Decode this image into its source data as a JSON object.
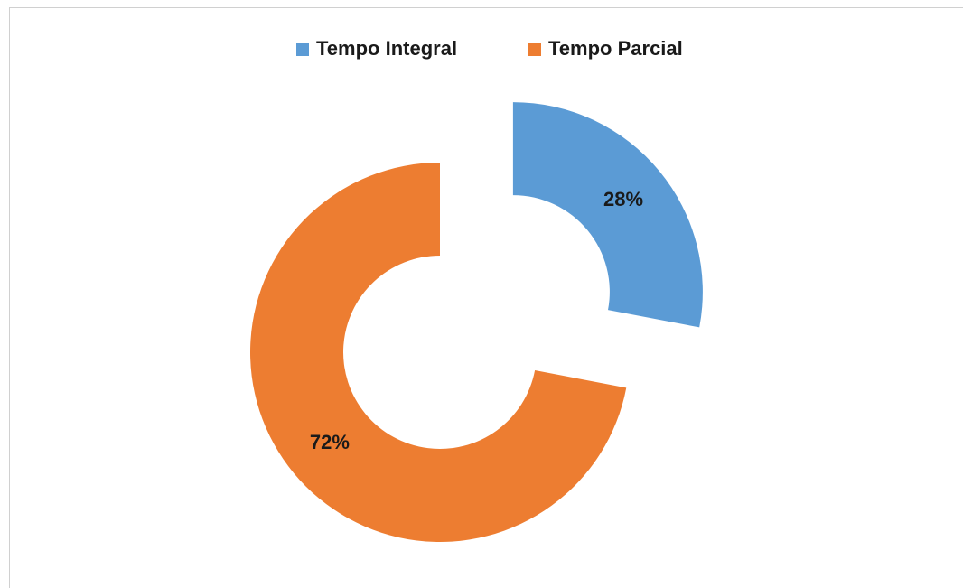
{
  "chart_data": {
    "type": "donut",
    "categories": [
      "Tempo Integral",
      "Tempo Parcial"
    ],
    "values": [
      28,
      72
    ],
    "value_labels": [
      "28%",
      "72%"
    ],
    "colors": [
      "#5b9bd5",
      "#ed7d31"
    ],
    "legend": "top"
  }
}
